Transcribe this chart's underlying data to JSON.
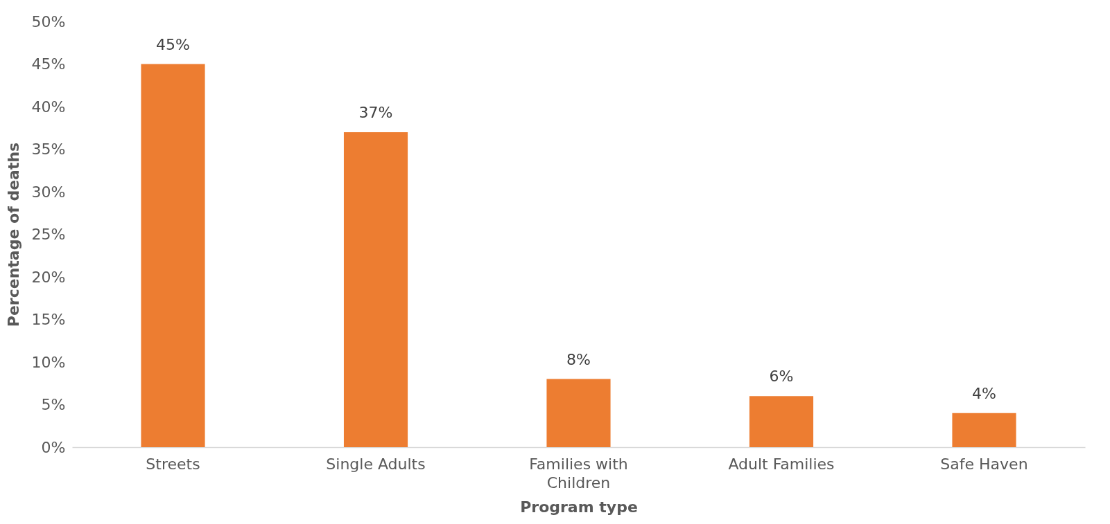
{
  "chart_data": {
    "type": "bar",
    "xlabel": "Program type",
    "ylabel": "Percentage of deaths",
    "categories": [
      "Streets",
      "Single Adults",
      "Families with Children",
      "Adult Families",
      "Safe Haven"
    ],
    "values": [
      45,
      37,
      8,
      6,
      4
    ],
    "value_labels": [
      "45%",
      "37%",
      "8%",
      "6%",
      "4%"
    ],
    "color": "#ed7d31",
    "ylim": [
      0,
      50
    ],
    "yticks": [
      {
        "value": 0,
        "label": "0%"
      },
      {
        "value": 5,
        "label": "5%"
      },
      {
        "value": 10,
        "label": "10%"
      },
      {
        "value": 15,
        "label": "15%"
      },
      {
        "value": 20,
        "label": "20%"
      },
      {
        "value": 25,
        "label": "25%"
      },
      {
        "value": 30,
        "label": "30%"
      },
      {
        "value": 35,
        "label": "35%"
      },
      {
        "value": 40,
        "label": "40%"
      },
      {
        "value": 45,
        "label": "45%"
      },
      {
        "value": 50,
        "label": "50%"
      }
    ],
    "grid": false
  }
}
